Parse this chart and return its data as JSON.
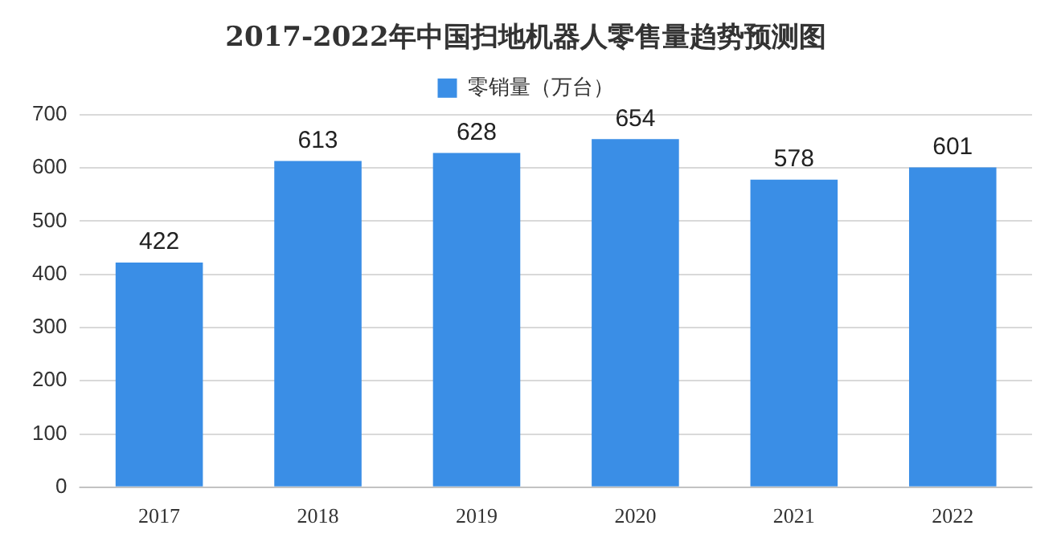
{
  "chart_data": {
    "type": "bar",
    "title": "2017-2022年中国扫地机器人零售量趋势预测图",
    "categories": [
      "2017",
      "2018",
      "2019",
      "2020",
      "2021",
      "2022"
    ],
    "series": [
      {
        "name": "零销量（万台）",
        "color": "#3a8ee6",
        "values": [
          422,
          613,
          628,
          654,
          578,
          601
        ]
      }
    ],
    "ylim": [
      0,
      700
    ],
    "yticks": [
      0,
      100,
      200,
      300,
      400,
      500,
      600,
      700
    ],
    "grid": "y",
    "legend": "top",
    "data_labels": true
  }
}
